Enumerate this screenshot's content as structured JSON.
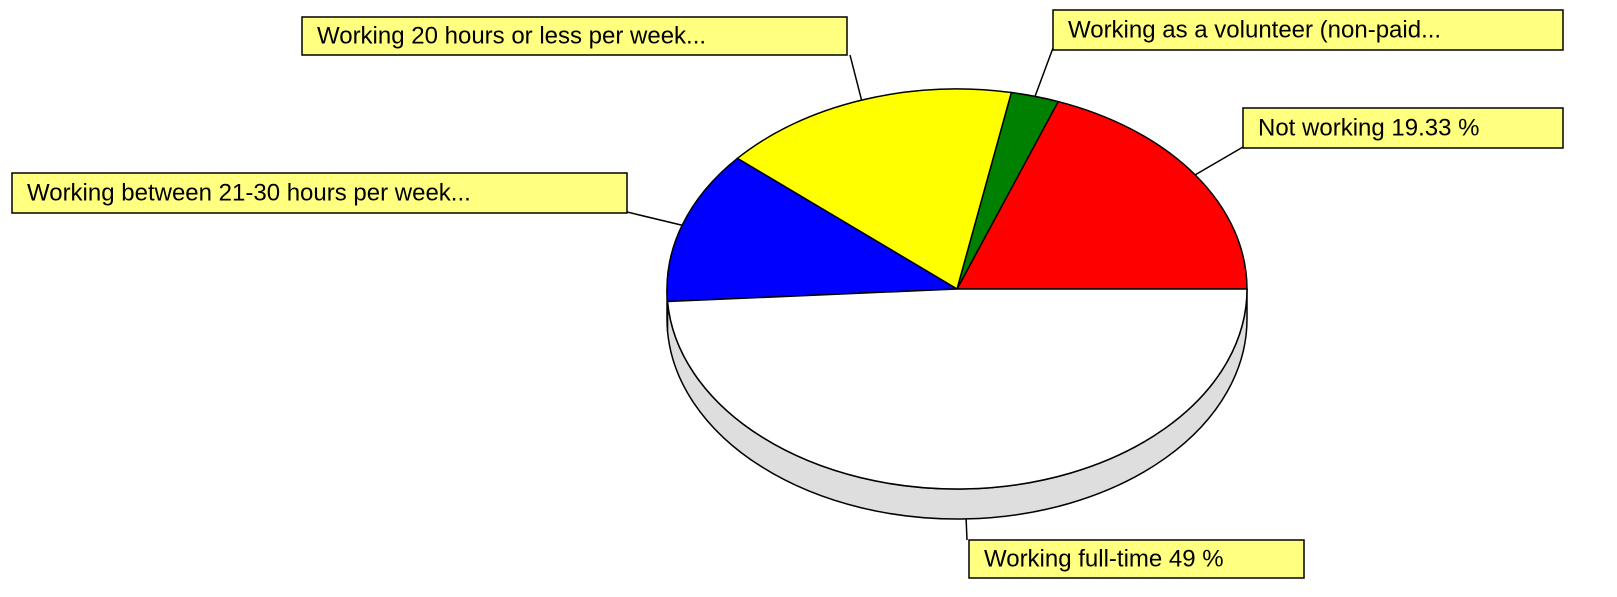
{
  "chart_data": {
    "type": "pie3d",
    "labels": [
      "Not working 19.33 %",
      "Working as a volunteer (non-paid...",
      "Working 20 hours or less per week...",
      "Working between 21-30 hours per week...",
      "Working full-time 49 %"
    ],
    "values": [
      19.33,
      2.67,
      16.67,
      12.33,
      49
    ],
    "colors": [
      "#ff0000",
      "#008000",
      "#ffff00",
      "#0000ff",
      "#ffffff"
    ]
  }
}
